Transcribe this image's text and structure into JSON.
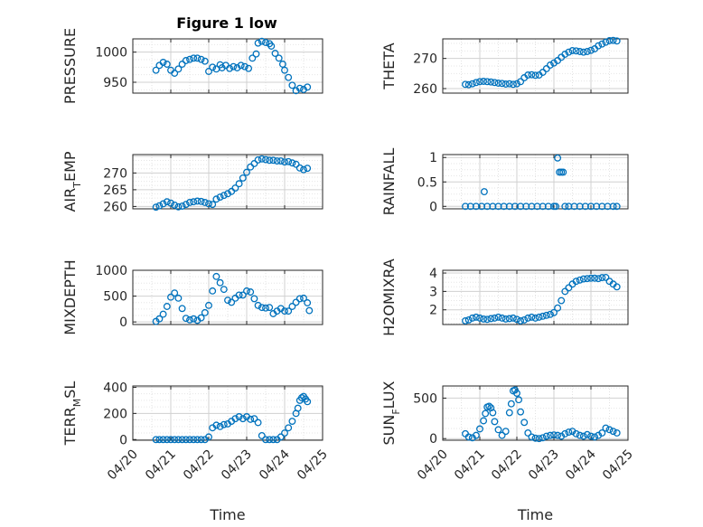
{
  "figure": {
    "title": "Figure 1 low",
    "marker_color": "#0072BD"
  },
  "chart_data": [
    {
      "type": "scatter",
      "id": "pressure",
      "ylabel": {
        "main": "PRESSURE",
        "sub": ""
      },
      "xlabel": "",
      "x_domain": [
        "04/20",
        "04/25"
      ],
      "x_ticks": [],
      "ylim": [
        932,
        1022
      ],
      "y_ticks": [
        950,
        1000
      ],
      "grid": true,
      "x": [
        0.61,
        0.7,
        0.8,
        0.9,
        1.0,
        1.1,
        1.2,
        1.3,
        1.4,
        1.5,
        1.6,
        1.7,
        1.8,
        1.9,
        2.0,
        2.1,
        2.2,
        2.3,
        2.35,
        2.45,
        2.55,
        2.65,
        2.75,
        2.85,
        2.95,
        3.05,
        3.15,
        3.25,
        3.3,
        3.4,
        3.5,
        3.6,
        3.65,
        3.75,
        3.85,
        3.95,
        4.0,
        4.1,
        4.2,
        4.3,
        4.4,
        4.5,
        4.6
      ],
      "y": [
        970,
        978,
        983,
        980,
        970,
        965,
        972,
        980,
        986,
        988,
        990,
        990,
        988,
        985,
        968,
        975,
        972,
        979,
        974,
        978,
        973,
        976,
        974,
        978,
        976,
        973,
        990,
        997,
        1015,
        1018,
        1016,
        1014,
        1010,
        998,
        990,
        980,
        970,
        958,
        945,
        936,
        940,
        938,
        942
      ]
    },
    {
      "type": "scatter",
      "id": "theta",
      "ylabel": {
        "main": "THETA",
        "sub": ""
      },
      "xlabel": "",
      "x_domain": [
        "04/20",
        "04/25"
      ],
      "x_ticks": [],
      "ylim": [
        258.5,
        276.5
      ],
      "y_ticks": [
        260,
        270
      ],
      "grid": true,
      "x": [
        0.61,
        0.7,
        0.8,
        0.9,
        1.0,
        1.1,
        1.2,
        1.3,
        1.4,
        1.5,
        1.6,
        1.7,
        1.8,
        1.9,
        2.0,
        2.1,
        2.2,
        2.3,
        2.4,
        2.5,
        2.6,
        2.7,
        2.8,
        2.9,
        3.0,
        3.1,
        3.2,
        3.3,
        3.4,
        3.5,
        3.6,
        3.7,
        3.8,
        3.9,
        4.0,
        4.1,
        4.2,
        4.3,
        4.4,
        4.5,
        4.6,
        4.7
      ],
      "y": [
        261.4,
        261.3,
        261.6,
        262.0,
        262.3,
        262.4,
        262.3,
        262.2,
        262.0,
        261.8,
        261.7,
        261.5,
        261.6,
        261.4,
        261.6,
        262.3,
        263.6,
        264.5,
        264.6,
        264.4,
        264.5,
        265.4,
        266.6,
        267.8,
        268.5,
        269.3,
        270.4,
        271.4,
        272.1,
        272.6,
        272.5,
        272.3,
        272.1,
        272.3,
        272.7,
        273.2,
        274.2,
        274.8,
        275.4,
        275.9,
        276.0,
        275.8
      ]
    },
    {
      "type": "scatter",
      "id": "air_temp",
      "ylabel": {
        "main": "AIR",
        "sub": "T",
        "rest": "EMP"
      },
      "xlabel": "",
      "x_domain": [
        "04/20",
        "04/25"
      ],
      "x_ticks": [],
      "ylim": [
        259.3,
        275.5
      ],
      "y_ticks": [
        260,
        265,
        270
      ],
      "grid": true,
      "x": [
        0.61,
        0.7,
        0.8,
        0.9,
        1.0,
        1.1,
        1.2,
        1.3,
        1.4,
        1.5,
        1.6,
        1.7,
        1.8,
        1.9,
        2.0,
        2.1,
        2.2,
        2.3,
        2.4,
        2.5,
        2.6,
        2.7,
        2.8,
        2.9,
        3.0,
        3.1,
        3.2,
        3.3,
        3.4,
        3.5,
        3.6,
        3.7,
        3.8,
        3.9,
        4.0,
        4.1,
        4.2,
        4.3,
        4.4,
        4.5,
        4.6
      ],
      "y": [
        259.8,
        260.2,
        260.8,
        261.4,
        261.0,
        260.4,
        259.9,
        260.1,
        260.6,
        261.2,
        261.4,
        261.6,
        261.5,
        261.2,
        260.8,
        260.6,
        262.2,
        262.8,
        263.3,
        263.8,
        264.5,
        265.5,
        266.8,
        268.5,
        270.2,
        271.8,
        272.8,
        273.9,
        274.2,
        274.0,
        273.8,
        273.8,
        273.6,
        273.6,
        273.3,
        273.4,
        273.0,
        272.6,
        271.5,
        271.0,
        271.4
      ]
    },
    {
      "type": "scatter",
      "id": "rainfall",
      "ylabel": {
        "main": "RAINFALL",
        "sub": ""
      },
      "xlabel": "",
      "x_domain": [
        "04/20",
        "04/25"
      ],
      "x_ticks": [],
      "ylim": [
        -0.05,
        1.06
      ],
      "y_ticks": [
        0,
        0.5,
        1
      ],
      "grid": true,
      "x": [
        0.61,
        0.75,
        0.9,
        1.05,
        1.12,
        1.2,
        1.35,
        1.5,
        1.65,
        1.8,
        1.95,
        2.1,
        2.25,
        2.4,
        2.55,
        2.7,
        2.85,
        3.0,
        3.05,
        3.1,
        3.15,
        3.2,
        3.25,
        3.3,
        3.4,
        3.55,
        3.7,
        3.85,
        4.0,
        4.15,
        4.3,
        4.45,
        4.6,
        4.7
      ],
      "y": [
        0,
        0,
        0,
        0,
        0.3,
        0,
        0,
        0,
        0,
        0,
        0,
        0,
        0,
        0,
        0,
        0,
        0,
        0,
        0,
        0.99,
        0.7,
        0.7,
        0.7,
        0,
        0,
        0,
        0,
        0,
        0,
        0,
        0,
        0,
        0,
        0
      ]
    },
    {
      "type": "scatter",
      "id": "mixdepth",
      "ylabel": {
        "main": "MIXDEPTH",
        "sub": ""
      },
      "xlabel": "",
      "x_domain": [
        "04/20",
        "04/25"
      ],
      "x_ticks": [],
      "ylim": [
        -50,
        1000
      ],
      "y_ticks": [
        0,
        500,
        1000
      ],
      "grid": true,
      "x": [
        0.61,
        0.7,
        0.8,
        0.9,
        1.0,
        1.1,
        1.2,
        1.3,
        1.4,
        1.5,
        1.6,
        1.7,
        1.8,
        1.9,
        2.0,
        2.1,
        2.2,
        2.3,
        2.4,
        2.5,
        2.6,
        2.7,
        2.8,
        2.9,
        3.0,
        3.1,
        3.2,
        3.3,
        3.4,
        3.5,
        3.6,
        3.7,
        3.8,
        3.9,
        4.0,
        4.1,
        4.2,
        4.3,
        4.4,
        4.5,
        4.6,
        4.65
      ],
      "y": [
        10,
        60,
        150,
        300,
        480,
        560,
        460,
        260,
        70,
        40,
        60,
        30,
        80,
        180,
        320,
        600,
        880,
        760,
        630,
        420,
        380,
        460,
        520,
        520,
        600,
        580,
        450,
        320,
        280,
        270,
        280,
        160,
        210,
        260,
        210,
        210,
        300,
        380,
        450,
        460,
        370,
        220
      ]
    },
    {
      "type": "scatter",
      "id": "h2omixra",
      "ylabel": {
        "main": "H2OMIXRA",
        "sub": ""
      },
      "xlabel": "",
      "x_domain": [
        "04/20",
        "04/25"
      ],
      "x_ticks": [],
      "ylim": [
        1.2,
        4.15
      ],
      "y_ticks": [
        2,
        3,
        4
      ],
      "grid": true,
      "x": [
        0.61,
        0.7,
        0.8,
        0.9,
        1.0,
        1.1,
        1.2,
        1.3,
        1.4,
        1.5,
        1.6,
        1.7,
        1.8,
        1.9,
        2.0,
        2.1,
        2.2,
        2.3,
        2.4,
        2.5,
        2.6,
        2.7,
        2.8,
        2.9,
        3.0,
        3.1,
        3.2,
        3.3,
        3.4,
        3.5,
        3.6,
        3.7,
        3.8,
        3.9,
        4.0,
        4.1,
        4.2,
        4.3,
        4.4,
        4.5,
        4.6,
        4.7
      ],
      "y": [
        1.4,
        1.45,
        1.55,
        1.6,
        1.55,
        1.5,
        1.48,
        1.52,
        1.55,
        1.6,
        1.55,
        1.5,
        1.52,
        1.55,
        1.48,
        1.4,
        1.45,
        1.55,
        1.6,
        1.55,
        1.6,
        1.65,
        1.7,
        1.75,
        1.85,
        2.1,
        2.5,
        3.0,
        3.2,
        3.4,
        3.55,
        3.62,
        3.68,
        3.7,
        3.72,
        3.72,
        3.7,
        3.75,
        3.76,
        3.55,
        3.4,
        3.25
      ]
    },
    {
      "type": "scatter",
      "id": "terr_msl",
      "ylabel": {
        "main": "TERR",
        "sub": "M",
        "rest": "SL"
      },
      "xlabel": "Time",
      "x_domain": [
        "04/20",
        "04/25"
      ],
      "x_ticks": [
        "04/20",
        "04/21",
        "04/22",
        "04/23",
        "04/24",
        "04/25"
      ],
      "ylim": [
        -5,
        410
      ],
      "y_ticks": [
        0,
        200,
        400
      ],
      "grid": true,
      "x": [
        0.61,
        0.7,
        0.8,
        0.9,
        1.0,
        1.1,
        1.2,
        1.3,
        1.4,
        1.5,
        1.6,
        1.7,
        1.8,
        1.9,
        2.0,
        2.1,
        2.2,
        2.3,
        2.4,
        2.5,
        2.6,
        2.7,
        2.8,
        2.9,
        3.0,
        3.1,
        3.2,
        3.3,
        3.4,
        3.5,
        3.6,
        3.7,
        3.8,
        3.9,
        4.0,
        4.1,
        4.2,
        4.3,
        4.35,
        4.4,
        4.45,
        4.5,
        4.55,
        4.6
      ],
      "y": [
        0,
        0,
        0,
        0,
        0,
        0,
        0,
        0,
        0,
        0,
        0,
        0,
        0,
        0,
        20,
        90,
        110,
        100,
        115,
        120,
        140,
        160,
        175,
        160,
        175,
        155,
        160,
        130,
        30,
        0,
        0,
        0,
        0,
        20,
        50,
        90,
        140,
        200,
        240,
        300,
        320,
        330,
        310,
        290
      ]
    },
    {
      "type": "scatter",
      "id": "sun_flux",
      "ylabel": {
        "main": "SUN",
        "sub": "F",
        "rest": "LUX"
      },
      "xlabel": "Time",
      "x_domain": [
        "04/20",
        "04/25"
      ],
      "x_ticks": [
        "04/20",
        "04/21",
        "04/22",
        "04/23",
        "04/24",
        "04/25"
      ],
      "ylim": [
        -20,
        650
      ],
      "y_ticks": [
        0,
        500
      ],
      "grid": true,
      "x": [
        0.61,
        0.7,
        0.8,
        0.9,
        1.0,
        1.1,
        1.15,
        1.2,
        1.25,
        1.3,
        1.35,
        1.4,
        1.5,
        1.6,
        1.7,
        1.8,
        1.85,
        1.9,
        1.95,
        2.0,
        2.05,
        2.1,
        2.2,
        2.3,
        2.4,
        2.5,
        2.6,
        2.7,
        2.8,
        2.9,
        3.0,
        3.1,
        3.2,
        3.3,
        3.4,
        3.5,
        3.6,
        3.7,
        3.8,
        3.9,
        4.0,
        4.1,
        4.2,
        4.3,
        4.4,
        4.5,
        4.6,
        4.7
      ],
      "y": [
        60,
        20,
        10,
        40,
        120,
        220,
        310,
        390,
        400,
        380,
        320,
        210,
        110,
        40,
        90,
        320,
        430,
        590,
        600,
        560,
        480,
        330,
        200,
        70,
        20,
        5,
        0,
        10,
        30,
        40,
        45,
        40,
        30,
        60,
        80,
        90,
        60,
        40,
        30,
        50,
        30,
        20,
        40,
        70,
        130,
        110,
        90,
        70
      ]
    }
  ]
}
